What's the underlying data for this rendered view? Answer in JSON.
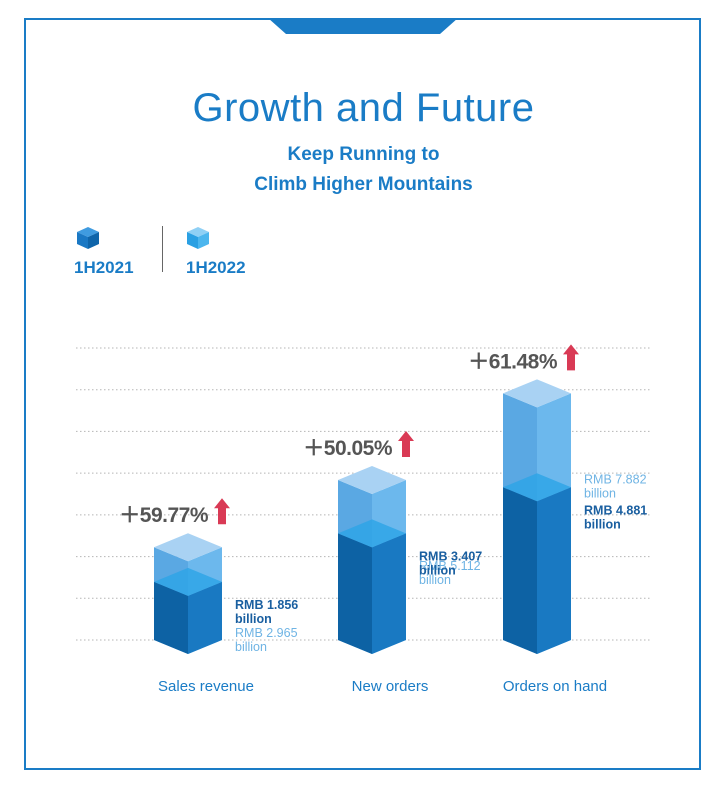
{
  "chart_data": {
    "type": "bar",
    "title": "Growth and Future",
    "subtitle_lines": [
      "Keep Running to",
      "Climb Higher Mountains"
    ],
    "categories": [
      "Sales revenue",
      "New orders",
      "Orders on hand"
    ],
    "unit": "RMB billion",
    "series": [
      {
        "name": "1H2021",
        "values": [
          1.856,
          3.407,
          4.881
        ]
      },
      {
        "name": "1H2022",
        "values": [
          2.965,
          5.112,
          7.882
        ]
      }
    ],
    "growth_labels": [
      "＋59.77%",
      "＋50.05%",
      "＋61.48%"
    ],
    "value_labels_2021": [
      [
        "RMB 1.856",
        "billion"
      ],
      [
        "RMB 3.407",
        "billion"
      ],
      [
        "RMB 4.881",
        "billion"
      ]
    ],
    "value_labels_2022": [
      [
        "RMB 2.965",
        "billion"
      ],
      [
        "RMB 5.112",
        "billion"
      ],
      [
        "RMB 7.882",
        "billion"
      ]
    ],
    "ylim": [
      0,
      8.5
    ],
    "grid": true
  },
  "legend": [
    {
      "label": "1H2021",
      "color": "#1a7cc6"
    },
    {
      "label": "1H2022",
      "color": "#2aa0e3"
    }
  ],
  "colors": {
    "accent": "#1a7cc6",
    "bar_2021_front": "#1979c2",
    "bar_2021_side": "#0d62a4",
    "bar_2022_front": "#5aa8e3",
    "bar_2022_side": "#6cb8ed",
    "bar_top": "#a9d2f3",
    "grid": "#b5b5b5",
    "label_2021": "#1a5fa0",
    "label_2022": "#6fb4e4",
    "growth_text": "#555555",
    "arrow": "#d93a55"
  }
}
